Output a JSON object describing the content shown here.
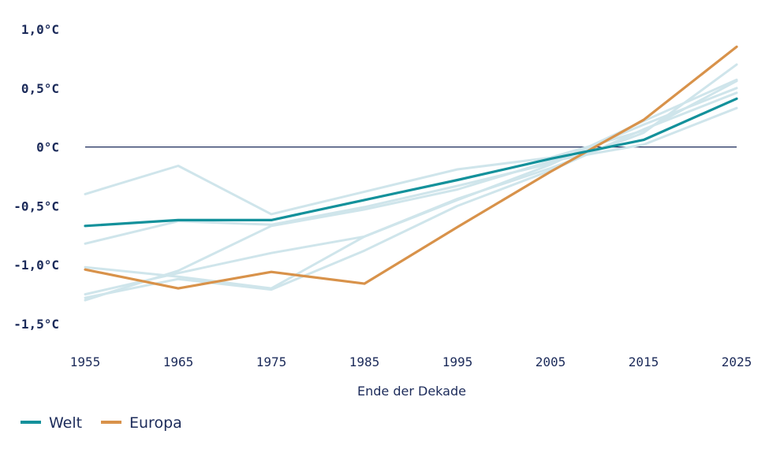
{
  "chart_data": {
    "type": "line",
    "title": "",
    "xlabel": "Ende der Dekade",
    "ylabel": "",
    "x": [
      1955,
      1965,
      1975,
      1985,
      1995,
      2005,
      2015,
      2025
    ],
    "xtick_labels": [
      "1955",
      "1965",
      "1975",
      "1985",
      "1995",
      "2005",
      "2015",
      "2025"
    ],
    "yticks": [
      1.0,
      0.5,
      0.0,
      -0.5,
      -1.0,
      -1.5
    ],
    "ytick_labels": [
      "1,0°C",
      "0,5°C",
      "0°C",
      "-0,5°C",
      "-1,0°C",
      "-1,5°C"
    ],
    "ylim": [
      -1.5,
      1.0
    ],
    "xlim": [
      1955,
      2025
    ],
    "zero_line": true,
    "grid": false,
    "legend_position": "bottom-left",
    "series": [
      {
        "name": "Welt",
        "color": "#13919b",
        "highlight": true,
        "points": [
          [
            1955,
            -0.67
          ],
          [
            1965,
            -0.62
          ],
          [
            1975,
            -0.62
          ],
          [
            1985,
            -0.45
          ],
          [
            1995,
            -0.28
          ],
          [
            2005,
            -0.1
          ],
          [
            2015,
            0.06
          ],
          [
            2025,
            0.41
          ]
        ]
      },
      {
        "name": "Europa",
        "color": "#d8924a",
        "highlight": true,
        "points": [
          [
            1955,
            -1.04
          ],
          [
            1965,
            -1.2
          ],
          [
            1975,
            -1.06
          ],
          [
            1985,
            -1.16
          ],
          [
            1995,
            -0.68
          ],
          [
            2005,
            -0.21
          ],
          [
            2015,
            0.23
          ],
          [
            2025,
            0.85
          ]
        ]
      },
      {
        "name": "",
        "color": "#cfe5eb",
        "highlight": false,
        "points": [
          [
            1955,
            -0.4
          ],
          [
            1965,
            -0.16
          ],
          [
            1975,
            -0.57
          ],
          [
            1985,
            -0.38
          ],
          [
            1995,
            -0.19
          ],
          [
            2005,
            -0.09
          ],
          [
            2015,
            0.14
          ],
          [
            2025,
            0.56
          ]
        ]
      },
      {
        "name": "",
        "color": "#cfe5eb",
        "highlight": false,
        "points": [
          [
            1955,
            -0.82
          ],
          [
            1965,
            -0.63
          ],
          [
            1975,
            -0.66
          ],
          [
            1985,
            -0.51
          ],
          [
            1995,
            -0.33
          ],
          [
            2005,
            -0.14
          ],
          [
            2015,
            0.19
          ],
          [
            2025,
            0.5
          ]
        ]
      },
      {
        "name": "",
        "color": "#cfe5eb",
        "highlight": false,
        "points": [
          [
            1955,
            -1.02
          ],
          [
            1965,
            -1.1
          ],
          [
            1975,
            -1.2
          ],
          [
            1985,
            -0.76
          ],
          [
            1995,
            -0.44
          ],
          [
            2005,
            -0.18
          ],
          [
            2015,
            0.12
          ],
          [
            2025,
            0.7
          ]
        ]
      },
      {
        "name": "",
        "color": "#cfe5eb",
        "highlight": false,
        "points": [
          [
            1955,
            -1.25
          ],
          [
            1965,
            -1.07
          ],
          [
            1975,
            -0.9
          ],
          [
            1985,
            -0.76
          ],
          [
            1995,
            -0.45
          ],
          [
            2005,
            -0.15
          ],
          [
            2015,
            0.22
          ],
          [
            2025,
            0.57
          ]
        ]
      },
      {
        "name": "",
        "color": "#cfe5eb",
        "highlight": false,
        "points": [
          [
            1955,
            -1.3
          ],
          [
            1965,
            -1.05
          ],
          [
            1975,
            -0.67
          ],
          [
            1985,
            -0.53
          ],
          [
            1995,
            -0.36
          ],
          [
            2005,
            -0.12
          ],
          [
            2015,
            0.02
          ],
          [
            2025,
            0.33
          ]
        ]
      },
      {
        "name": "",
        "color": "#cfe5eb",
        "highlight": false,
        "points": [
          [
            1955,
            -1.28
          ],
          [
            1965,
            -1.12
          ],
          [
            1975,
            -1.21
          ],
          [
            1985,
            -0.88
          ],
          [
            1995,
            -0.5
          ],
          [
            2005,
            -0.2
          ],
          [
            2015,
            0.15
          ],
          [
            2025,
            0.46
          ]
        ]
      }
    ],
    "legend": [
      {
        "label": "Welt",
        "color": "#13919b"
      },
      {
        "label": "Europa",
        "color": "#d8924a"
      }
    ]
  }
}
